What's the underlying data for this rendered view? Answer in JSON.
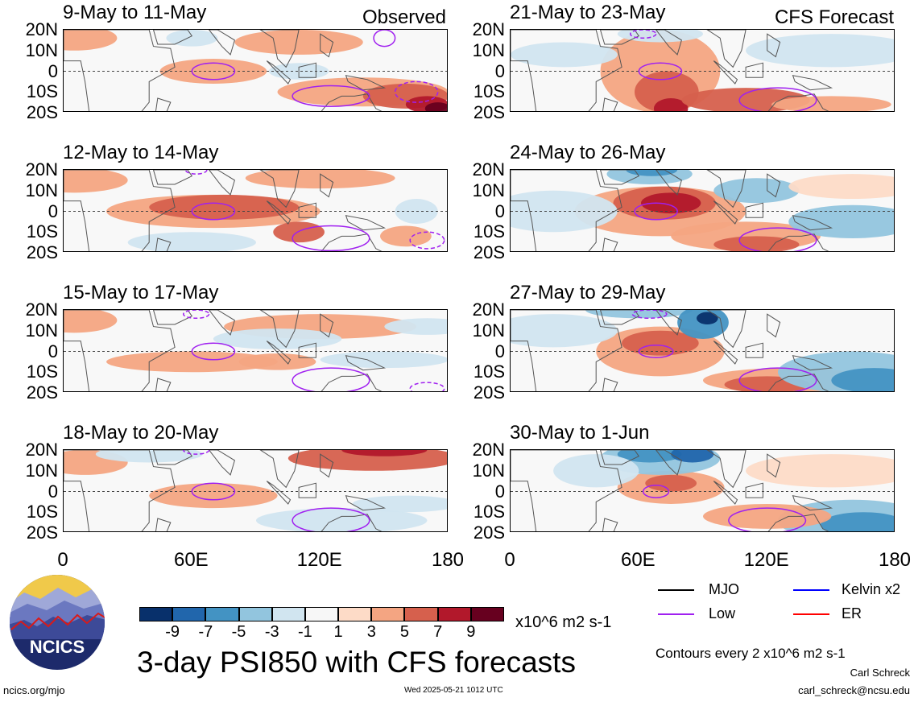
{
  "header": {
    "left_tag": "Observed",
    "right_tag": "CFS Forecast"
  },
  "chart_data": [
    {
      "type": "heatmap",
      "column": "observed",
      "title": "9-May to 11-May"
    },
    {
      "type": "heatmap",
      "column": "observed",
      "title": "12-May to 14-May"
    },
    {
      "type": "heatmap",
      "column": "observed",
      "title": "15-May to 17-May"
    },
    {
      "type": "heatmap",
      "column": "observed",
      "title": "18-May to 20-May"
    },
    {
      "type": "heatmap",
      "column": "forecast",
      "title": "21-May to 23-May"
    },
    {
      "type": "heatmap",
      "column": "forecast",
      "title": "24-May to 26-May"
    },
    {
      "type": "heatmap",
      "column": "forecast",
      "title": "27-May to 29-May"
    },
    {
      "type": "heatmap",
      "column": "forecast",
      "title": "30-May to 1-Jun"
    }
  ],
  "axes": {
    "lat_ticks": [
      "20N",
      "10N",
      "0",
      "10S",
      "20S"
    ],
    "lon_ticks": [
      "0",
      "60E",
      "120E",
      "180"
    ],
    "lat_range": [
      -20,
      20
    ],
    "lon_range": [
      0,
      180
    ]
  },
  "colorbar": {
    "labels": [
      "-9",
      "-7",
      "-5",
      "-3",
      "-1",
      "1",
      "3",
      "5",
      "7",
      "9"
    ],
    "colors": [
      "#08306b",
      "#2166ac",
      "#4393c3",
      "#92c5de",
      "#d1e5f0",
      "#f7f7f7",
      "#fddbc7",
      "#f4a582",
      "#d6604d",
      "#b2182b",
      "#67001f"
    ],
    "units": "x10^6 m2 s-1"
  },
  "title": "3-day PSI850 with CFS forecasts",
  "legend": {
    "items": [
      {
        "label": "MJO",
        "color": "#000000"
      },
      {
        "label": "Kelvin x2",
        "color": "#0000ff"
      },
      {
        "label": "Low",
        "color": "#a020f0"
      },
      {
        "label": "ER",
        "color": "#ff0000"
      }
    ],
    "contours_note": "Contours every 2 x10^6 m2 s-1"
  },
  "footer": {
    "left": "ncics.org/mjo",
    "timestamp": "Wed 2025-05-21 1012 UTC",
    "author": "Carl Schreck",
    "email": "carl_schreck@ncsu.edu"
  },
  "logo": {
    "text": "NCICS"
  }
}
